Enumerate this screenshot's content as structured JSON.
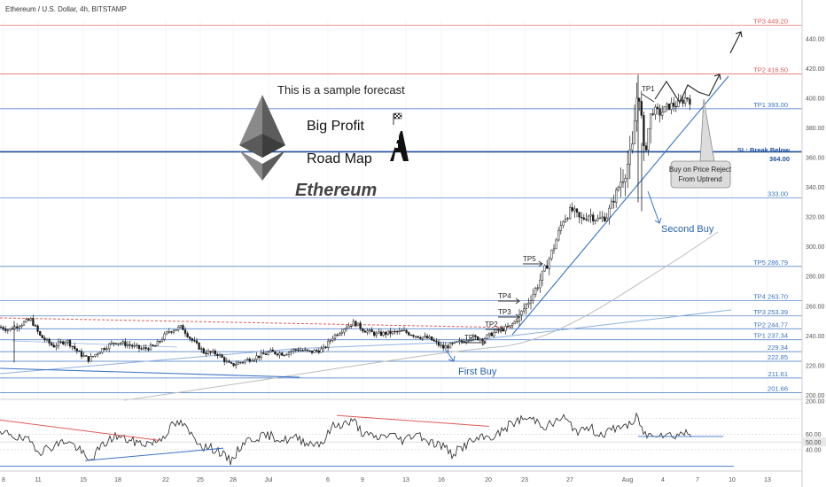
{
  "chart_data": {
    "type": "candlestick",
    "title": "Ethereum / U.S. Dollar, 4h, BITSTAMP",
    "price_axis": {
      "ticks": [
        200,
        220,
        240,
        260,
        280,
        300,
        320,
        340,
        360,
        380,
        400,
        420,
        440
      ],
      "range": [
        196,
        452
      ]
    },
    "x_axis": {
      "ticks": [
        "8",
        "11",
        "15",
        "18",
        "22",
        "25",
        "28",
        "Jul",
        "6",
        "9",
        "13",
        "16",
        "20",
        "23",
        "27",
        "Aug",
        "4",
        "7",
        "10",
        "13"
      ]
    },
    "levels": [
      {
        "label": "TP3 449.20",
        "value": 449.2,
        "color": "#e05a5a"
      },
      {
        "label": "TP2 416.50",
        "value": 416.5,
        "color": "#e05a5a"
      },
      {
        "label": "TP1 393.00",
        "value": 393.0,
        "color": "#3b72c4"
      },
      {
        "label": "SL: Break Below",
        "label2": "364.00",
        "value": 364.0,
        "color": "#1f4e9e"
      },
      {
        "label": "333.00",
        "value": 333.0,
        "color": "#3b72c4"
      },
      {
        "label": "TP5 286.79",
        "value": 286.79,
        "color": "#3b72c4"
      },
      {
        "label": "TP4 263.70",
        "value": 263.7,
        "color": "#3b72c4"
      },
      {
        "label": "TP3 253.39",
        "value": 253.39,
        "color": "#3b72c4"
      },
      {
        "label": "TP2 244.77",
        "value": 244.77,
        "color": "#3b72c4"
      },
      {
        "label": "TP1 237.34",
        "value": 237.34,
        "color": "#3b72c4"
      },
      {
        "label": "229.34",
        "value": 229.34,
        "color": "#3b72c4"
      },
      {
        "label": "222.85",
        "value": 222.85,
        "color": "#3b72c4"
      },
      {
        "label": "211.61",
        "value": 211.61,
        "color": "#3b72c4"
      },
      {
        "label": "201.66",
        "value": 201.66,
        "color": "#3b72c4"
      }
    ],
    "price_path": [
      [
        0,
        246
      ],
      [
        10,
        244
      ],
      [
        20,
        247
      ],
      [
        35,
        251
      ],
      [
        45,
        240
      ],
      [
        60,
        233
      ],
      [
        75,
        237
      ],
      [
        90,
        228
      ],
      [
        100,
        224
      ],
      [
        115,
        231
      ],
      [
        130,
        236
      ],
      [
        145,
        234
      ],
      [
        160,
        231
      ],
      [
        175,
        233
      ],
      [
        190,
        243
      ],
      [
        205,
        246
      ],
      [
        215,
        238
      ],
      [
        230,
        229
      ],
      [
        245,
        228
      ],
      [
        260,
        220
      ],
      [
        275,
        223
      ],
      [
        290,
        226
      ],
      [
        305,
        229
      ],
      [
        320,
        228
      ],
      [
        335,
        231
      ],
      [
        350,
        229
      ],
      [
        365,
        231
      ],
      [
        375,
        239
      ],
      [
        390,
        246
      ],
      [
        400,
        249
      ],
      [
        410,
        244
      ],
      [
        425,
        241
      ],
      [
        440,
        242
      ],
      [
        455,
        243
      ],
      [
        470,
        240
      ],
      [
        485,
        238
      ],
      [
        500,
        232
      ],
      [
        510,
        234
      ],
      [
        520,
        236
      ],
      [
        530,
        239
      ],
      [
        545,
        238
      ],
      [
        560,
        243
      ],
      [
        575,
        246
      ],
      [
        585,
        252
      ],
      [
        595,
        262
      ],
      [
        605,
        272
      ],
      [
        615,
        285
      ],
      [
        625,
        300
      ],
      [
        635,
        318
      ],
      [
        645,
        325
      ],
      [
        655,
        318
      ],
      [
        665,
        322
      ],
      [
        675,
        318
      ],
      [
        685,
        321
      ],
      [
        695,
        336
      ],
      [
        705,
        352
      ],
      [
        713,
        362
      ],
      [
        718,
        400
      ],
      [
        722,
        405
      ],
      [
        726,
        360
      ],
      [
        730,
        375
      ],
      [
        736,
        392
      ],
      [
        745,
        390
      ],
      [
        755,
        395
      ],
      [
        765,
        396
      ],
      [
        775,
        401
      ],
      [
        780,
        398
      ]
    ],
    "oscillator": {
      "ticks": [
        200.0,
        60.0,
        50.0,
        40.0
      ],
      "label": "50.00",
      "path": [
        [
          0,
          58
        ],
        [
          10,
          62
        ],
        [
          20,
          55
        ],
        [
          35,
          50
        ],
        [
          45,
          38
        ],
        [
          60,
          45
        ],
        [
          75,
          52
        ],
        [
          90,
          40
        ],
        [
          100,
          24
        ],
        [
          115,
          45
        ],
        [
          130,
          58
        ],
        [
          145,
          52
        ],
        [
          160,
          48
        ],
        [
          175,
          50
        ],
        [
          185,
          58
        ],
        [
          195,
          72
        ],
        [
          205,
          74
        ],
        [
          215,
          60
        ],
        [
          230,
          44
        ],
        [
          245,
          40
        ],
        [
          260,
          25
        ],
        [
          275,
          50
        ],
        [
          290,
          56
        ],
        [
          305,
          58
        ],
        [
          320,
          52
        ],
        [
          335,
          55
        ],
        [
          350,
          48
        ],
        [
          365,
          50
        ],
        [
          375,
          70
        ],
        [
          390,
          74
        ],
        [
          400,
          76
        ],
        [
          410,
          60
        ],
        [
          425,
          55
        ],
        [
          440,
          60
        ],
        [
          455,
          52
        ],
        [
          470,
          62
        ],
        [
          485,
          50
        ],
        [
          500,
          45
        ],
        [
          510,
          34
        ],
        [
          520,
          42
        ],
        [
          530,
          50
        ],
        [
          545,
          55
        ],
        [
          560,
          58
        ],
        [
          575,
          72
        ],
        [
          590,
          80
        ],
        [
          605,
          78
        ],
        [
          615,
          70
        ],
        [
          625,
          74
        ],
        [
          635,
          82
        ],
        [
          645,
          70
        ],
        [
          655,
          62
        ],
        [
          665,
          70
        ],
        [
          675,
          60
        ],
        [
          685,
          62
        ],
        [
          695,
          68
        ],
        [
          705,
          72
        ],
        [
          713,
          70
        ],
        [
          718,
          82
        ],
        [
          722,
          75
        ],
        [
          726,
          62
        ],
        [
          730,
          58
        ],
        [
          740,
          62
        ],
        [
          750,
          60
        ],
        [
          760,
          58
        ],
        [
          770,
          62
        ],
        [
          780,
          60
        ]
      ]
    },
    "annotations": {
      "sample_forecast": "This is a sample forecast",
      "big_profit": "Big Profit",
      "road_map": "Road Map",
      "ethereum": "Ethereum",
      "first_buy": "First Buy",
      "second_buy": "Second Buy",
      "callout_line1": "Buy on Price Reject",
      "callout_line2": "From Uptrend",
      "tp_marks": [
        "TP1",
        "TP2",
        "TP3",
        "TP4",
        "TP5",
        "TP1"
      ]
    },
    "colors": {
      "candle_up": "#1a1a1a",
      "candle_down": "#1a1a1a",
      "trend_line": "#3b72c4",
      "target_line": "#e05a5a",
      "stop_line": "#1f4e9e",
      "ma_line": "#b8b8b8",
      "accent_text": "#2962a8"
    }
  }
}
